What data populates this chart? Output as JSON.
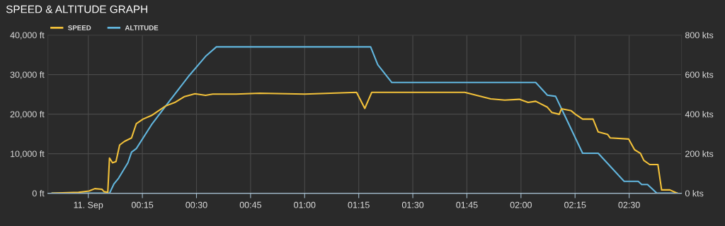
{
  "chart_data": {
    "type": "line",
    "title": "SPEED & ALTITUDE GRAPH",
    "series": [
      {
        "name": "SPEED",
        "color": "#f2c13a",
        "axis": "y2",
        "x": [
          -0.167,
          -0.045,
          0.003,
          0.03,
          0.063,
          0.073,
          0.09,
          0.098,
          0.112,
          0.128,
          0.145,
          0.167,
          0.2,
          0.222,
          0.253,
          0.292,
          0.357,
          0.4,
          0.445,
          0.493,
          0.542,
          0.575,
          0.683,
          0.793,
          1.0,
          1.24,
          1.278,
          1.31,
          1.74,
          1.86,
          1.925,
          1.992,
          2.033,
          2.068,
          2.122,
          2.143,
          2.177,
          2.187,
          2.232,
          2.252,
          2.285,
          2.333,
          2.357,
          2.4,
          2.412,
          2.498,
          2.525,
          2.552,
          2.568,
          2.595,
          2.633,
          2.65,
          2.688,
          2.722
        ],
        "values": [
          0,
          5,
          11,
          23,
          20,
          8,
          5,
          178,
          154,
          160,
          244,
          262,
          280,
          352,
          375,
          393,
          441,
          459,
          489,
          503,
          495,
          501,
          501,
          506,
          501,
          510,
          429,
          510,
          510,
          477,
          471,
          475,
          459,
          465,
          435,
          408,
          399,
          427,
          417,
          399,
          375,
          375,
          310,
          298,
          280,
          274,
          220,
          202,
          166,
          145,
          145,
          17,
          17,
          0
        ]
      },
      {
        "name": "ALTITUDE",
        "color": "#62b6de",
        "x": [
          -0.167,
          0.098,
          0.118,
          0.14,
          0.183,
          0.2,
          0.222,
          0.292,
          0.357,
          0.467,
          0.542,
          0.592,
          1.305,
          1.338,
          1.403,
          2.068,
          2.122,
          2.16,
          2.208,
          2.285,
          2.357,
          2.477,
          2.542,
          2.558,
          2.585,
          2.628,
          2.722
        ],
        "values": [
          0,
          0,
          2300,
          3800,
          7700,
          10400,
          11300,
          17300,
          22000,
          29800,
          34600,
          37000,
          37000,
          32500,
          28000,
          28000,
          24800,
          24500,
          19000,
          10100,
          10100,
          3000,
          3000,
          2200,
          2200,
          0,
          0
        ]
      }
    ],
    "xlim": [
      -0.187,
      2.742
    ],
    "xticks": [
      {
        "value": 0,
        "label": "11. Sep"
      },
      {
        "value": 0.25,
        "label": "00:15"
      },
      {
        "value": 0.5,
        "label": "00:30"
      },
      {
        "value": 0.75,
        "label": "00:45"
      },
      {
        "value": 1.0,
        "label": "01:00"
      },
      {
        "value": 1.25,
        "label": "01:15"
      },
      {
        "value": 1.5,
        "label": "01:30"
      },
      {
        "value": 1.75,
        "label": "01:45"
      },
      {
        "value": 2.0,
        "label": "02:00"
      },
      {
        "value": 2.25,
        "label": "02:15"
      },
      {
        "value": 2.5,
        "label": "02:30"
      }
    ],
    "ylim": [
      0,
      40000
    ],
    "yticks": [
      {
        "value": 0,
        "label": "0 ft"
      },
      {
        "value": 10000,
        "label": "10,000 ft"
      },
      {
        "value": 20000,
        "label": "20,000 ft"
      },
      {
        "value": 30000,
        "label": "30,000 ft"
      },
      {
        "value": 40000,
        "label": "40,000 ft"
      }
    ],
    "y2lim": [
      0,
      800
    ],
    "y2ticks": [
      {
        "value": 0,
        "label": "0 kts"
      },
      {
        "value": 200,
        "label": "200 kts"
      },
      {
        "value": 400,
        "label": "400 kts"
      },
      {
        "value": 600,
        "label": "600 kts"
      },
      {
        "value": 800,
        "label": "800 kts"
      }
    ],
    "grid": true,
    "legend": "top left",
    "marker": "none",
    "line_style": "solid"
  }
}
